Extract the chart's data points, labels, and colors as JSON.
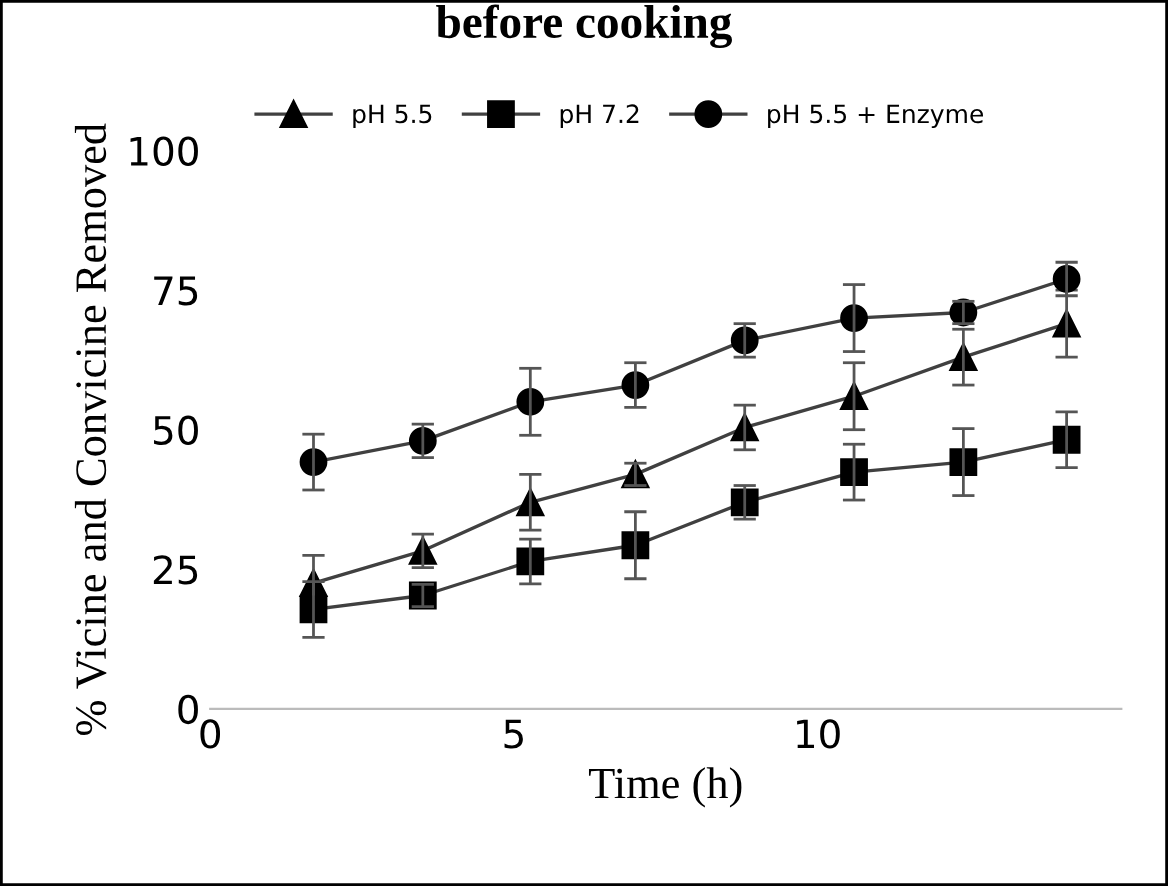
{
  "chart_data": {
    "type": "line",
    "title": "before cooking",
    "xlabel": "Time (h)",
    "ylabel": "% Vicine and Convicine Removed",
    "x": [
      1.7,
      3.5,
      5.27,
      7.0,
      8.8,
      10.6,
      12.4,
      14.1
    ],
    "series": [
      {
        "name": "pH 5.5",
        "color": "#000000",
        "marker": "triangle",
        "values": [
          22.5,
          28.3,
          37,
          42,
          50.4,
          56,
          63,
          69
        ],
        "errors": [
          5,
          3,
          5,
          2,
          4,
          6,
          5,
          6
        ]
      },
      {
        "name": "pH 7.2",
        "color": "#000000",
        "marker": "square",
        "values": [
          17.8,
          20.3,
          26.4,
          29.3,
          37,
          42.4,
          44.2,
          48.2
        ],
        "errors": [
          5,
          2,
          4,
          6,
          3,
          5,
          6,
          5
        ]
      },
      {
        "name": "pH 5.5 + Enzyme",
        "color": "#000000",
        "marker": "circle",
        "values": [
          44.2,
          48,
          55,
          58,
          66,
          70,
          71,
          77
        ],
        "errors": [
          5,
          3,
          6,
          4,
          3,
          6,
          2,
          3
        ]
      }
    ],
    "xlim": [
      0,
      15
    ],
    "xticks": [
      0,
      5,
      10
    ],
    "ylim": [
      0,
      100
    ],
    "yticks": [
      0,
      25,
      50,
      75,
      100
    ],
    "grid": false,
    "legend": "top",
    "line_style": "solid"
  }
}
